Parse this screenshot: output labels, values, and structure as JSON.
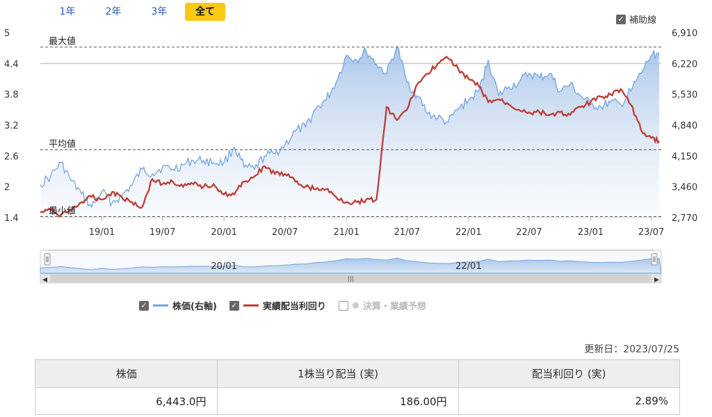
{
  "range_tabs": [
    {
      "label": "1年",
      "active": false
    },
    {
      "label": "2年",
      "active": false
    },
    {
      "label": "3年",
      "active": false
    },
    {
      "label": "全て",
      "active": true
    }
  ],
  "aux_lines_label": "補助線",
  "chart_data": {
    "type": "line",
    "x_ticks": [
      "19/01",
      "19/07",
      "20/01",
      "20/07",
      "21/01",
      "21/07",
      "22/01",
      "22/07",
      "23/01",
      "23/07"
    ],
    "left_axis": {
      "ticks": [
        "1.4",
        "2",
        "2.6",
        "3.2",
        "3.8",
        "4.4",
        "5"
      ],
      "range": [
        1.4,
        5
      ]
    },
    "right_axis": {
      "ticks": [
        "2,770",
        "3,460",
        "4,150",
        "4,840",
        "5,530",
        "6,220",
        "6,910"
      ],
      "range": [
        2770,
        6910
      ]
    },
    "reference_lines": [
      {
        "label": "最大値",
        "value": 4.72
      },
      {
        "label": "平均値",
        "value": 2.72
      },
      {
        "label": "最小値",
        "value": 1.42
      }
    ],
    "series": [
      {
        "name": "株価(右軸)",
        "axis": "right",
        "color": "#6fa4e0",
        "points": [
          [
            "2018-07-01",
            3510
          ],
          [
            "2018-08-01",
            3700
          ],
          [
            "2018-09-01",
            4000
          ],
          [
            "2018-10-01",
            3600
          ],
          [
            "2018-11-01",
            3300
          ],
          [
            "2018-12-01",
            3000
          ],
          [
            "2019-01-01",
            3350
          ],
          [
            "2019-02-01",
            3100
          ],
          [
            "2019-03-01",
            3250
          ],
          [
            "2019-04-01",
            3500
          ],
          [
            "2019-05-01",
            3850
          ],
          [
            "2019-06-01",
            3750
          ],
          [
            "2019-07-01",
            3900
          ],
          [
            "2019-08-01",
            3850
          ],
          [
            "2019-09-01",
            3950
          ],
          [
            "2019-10-01",
            4050
          ],
          [
            "2019-11-01",
            4050
          ],
          [
            "2019-12-01",
            4000
          ],
          [
            "2020-01-01",
            4000
          ],
          [
            "2020-02-01",
            4350
          ],
          [
            "2020-03-01",
            3900
          ],
          [
            "2020-04-01",
            3850
          ],
          [
            "2020-05-01",
            4150
          ],
          [
            "2020-06-01",
            4200
          ],
          [
            "2020-07-01",
            4400
          ],
          [
            "2020-08-01",
            4700
          ],
          [
            "2020-09-01",
            4800
          ],
          [
            "2020-10-01",
            5200
          ],
          [
            "2020-11-01",
            5400
          ],
          [
            "2020-12-01",
            5800
          ],
          [
            "2021-01-01",
            6400
          ],
          [
            "2021-02-01",
            6300
          ],
          [
            "2021-03-01",
            6500
          ],
          [
            "2021-04-01",
            6200
          ],
          [
            "2021-05-01",
            6000
          ],
          [
            "2021-06-01",
            6600
          ],
          [
            "2021-07-01",
            5800
          ],
          [
            "2021-08-01",
            5500
          ],
          [
            "2021-09-01",
            5100
          ],
          [
            "2021-10-01",
            5000
          ],
          [
            "2021-11-01",
            4900
          ],
          [
            "2021-12-01",
            5200
          ],
          [
            "2022-01-01",
            5400
          ],
          [
            "2022-02-01",
            5600
          ],
          [
            "2022-03-01",
            6300
          ],
          [
            "2022-04-01",
            5500
          ],
          [
            "2022-05-01",
            5700
          ],
          [
            "2022-06-01",
            5800
          ],
          [
            "2022-07-01",
            6000
          ],
          [
            "2022-08-01",
            5900
          ],
          [
            "2022-09-01",
            6000
          ],
          [
            "2022-10-01",
            5600
          ],
          [
            "2022-11-01",
            5750
          ],
          [
            "2022-12-01",
            5500
          ],
          [
            "2023-01-01",
            5300
          ],
          [
            "2023-02-01",
            5250
          ],
          [
            "2023-03-01",
            5350
          ],
          [
            "2023-04-01",
            5300
          ],
          [
            "2023-05-01",
            5600
          ],
          [
            "2023-06-01",
            6000
          ],
          [
            "2023-07-01",
            6400
          ],
          [
            "2023-07-25",
            6443
          ]
        ]
      },
      {
        "name": "実績配当利回り",
        "axis": "left",
        "color": "#c0403a",
        "points": [
          [
            "2018-07-01",
            1.5
          ],
          [
            "2018-08-01",
            1.55
          ],
          [
            "2018-09-01",
            1.45
          ],
          [
            "2018-10-01",
            1.55
          ],
          [
            "2018-11-01",
            1.7
          ],
          [
            "2018-12-01",
            1.8
          ],
          [
            "2019-01-01",
            1.75
          ],
          [
            "2019-02-01",
            1.9
          ],
          [
            "2019-03-01",
            1.8
          ],
          [
            "2019-04-01",
            1.7
          ],
          [
            "2019-05-01",
            1.6
          ],
          [
            "2019-06-01",
            2.15
          ],
          [
            "2019-07-01",
            2.05
          ],
          [
            "2019-08-01",
            2.1
          ],
          [
            "2019-09-01",
            2.0
          ],
          [
            "2019-10-01",
            2.05
          ],
          [
            "2019-11-01",
            2.0
          ],
          [
            "2019-12-01",
            2.05
          ],
          [
            "2020-01-01",
            1.85
          ],
          [
            "2020-02-01",
            1.85
          ],
          [
            "2020-03-01",
            2.1
          ],
          [
            "2020-04-01",
            2.2
          ],
          [
            "2020-05-01",
            2.4
          ],
          [
            "2020-06-01",
            2.25
          ],
          [
            "2020-07-01",
            2.25
          ],
          [
            "2020-08-01",
            2.1
          ],
          [
            "2020-09-01",
            2.0
          ],
          [
            "2020-10-01",
            1.95
          ],
          [
            "2020-11-01",
            1.95
          ],
          [
            "2020-12-01",
            1.8
          ],
          [
            "2021-01-01",
            1.7
          ],
          [
            "2021-02-01",
            1.7
          ],
          [
            "2021-03-01",
            1.75
          ],
          [
            "2021-04-01",
            1.75
          ],
          [
            "2021-05-01",
            3.55
          ],
          [
            "2021-06-01",
            3.3
          ],
          [
            "2021-07-01",
            3.5
          ],
          [
            "2021-08-01",
            4.0
          ],
          [
            "2021-09-01",
            4.2
          ],
          [
            "2021-10-01",
            4.4
          ],
          [
            "2021-11-01",
            4.5
          ],
          [
            "2021-12-01",
            4.3
          ],
          [
            "2022-01-01",
            4.1
          ],
          [
            "2022-02-01",
            3.95
          ],
          [
            "2022-03-01",
            3.65
          ],
          [
            "2022-04-01",
            3.7
          ],
          [
            "2022-05-01",
            3.6
          ],
          [
            "2022-06-01",
            3.5
          ],
          [
            "2022-07-01",
            3.45
          ],
          [
            "2022-08-01",
            3.45
          ],
          [
            "2022-09-01",
            3.4
          ],
          [
            "2022-10-01",
            3.45
          ],
          [
            "2022-11-01",
            3.4
          ],
          [
            "2022-12-01",
            3.55
          ],
          [
            "2023-01-01",
            3.65
          ],
          [
            "2023-02-01",
            3.75
          ],
          [
            "2023-03-01",
            3.8
          ],
          [
            "2023-04-01",
            3.9
          ],
          [
            "2023-05-01",
            3.6
          ],
          [
            "2023-06-01",
            3.1
          ],
          [
            "2023-07-01",
            2.95
          ],
          [
            "2023-07-25",
            2.89
          ]
        ]
      }
    ],
    "grid": false
  },
  "navigator": {
    "labels": [
      "20/01",
      "22/01"
    ]
  },
  "legend": [
    {
      "label": "株価(右軸)",
      "checked": true,
      "color": "#6fa4e0",
      "disabled": false
    },
    {
      "label": "実績配当利回り",
      "checked": true,
      "color": "#c0403a",
      "disabled": false
    },
    {
      "label": "決算・業績予想",
      "checked": false,
      "color": "#cccccc",
      "disabled": true
    }
  ],
  "updated": "更新日：2023/07/25",
  "summary": {
    "headers": [
      "株価",
      "1株当り配当 (実)",
      "配当利回り (実)"
    ],
    "values": [
      "6,443.0円",
      "186.00円",
      "2.89%"
    ]
  }
}
